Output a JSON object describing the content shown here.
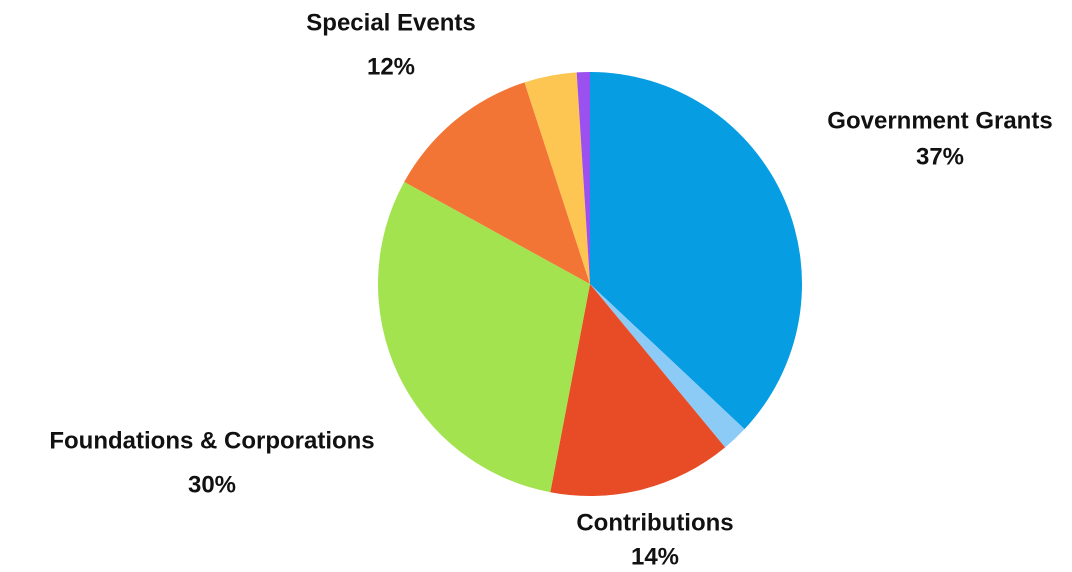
{
  "chart_data": {
    "type": "pie",
    "categories": [
      "Government Grants",
      null,
      "Contributions",
      "Foundations & Corporations",
      "Special Events",
      null,
      null
    ],
    "values": [
      37,
      2,
      14,
      30,
      12,
      4,
      1
    ],
    "value_labels": [
      "37%",
      null,
      "14%",
      "30%",
      "12%",
      null,
      null
    ],
    "colors": [
      "#069de3",
      "#8ccbf5",
      "#e84c27",
      "#a3e34f",
      "#f37535",
      "#fdc551",
      "#9b51f0"
    ]
  }
}
